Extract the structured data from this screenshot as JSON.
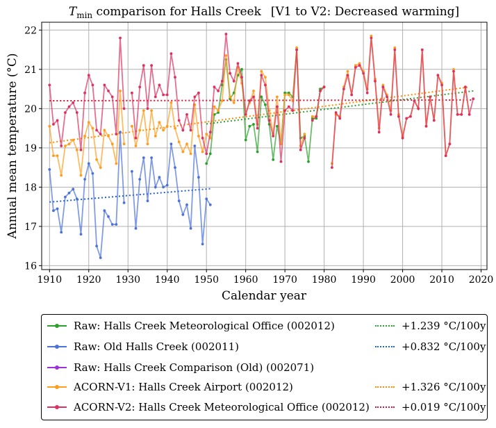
{
  "chart_data": {
    "type": "line",
    "title_main": "T",
    "title_sub": "min",
    "title_rest": " comparison for Halls Creek",
    "title_bracket": "[V1 to V2: Decreased warming]",
    "xlabel": "Calendar year",
    "ylabel": "Annual mean temperature (°C)",
    "xlim": [
      1908,
      2021.5
    ],
    "ylim": [
      15.9,
      22.2
    ],
    "xticks": [
      1910,
      1920,
      1930,
      1940,
      1950,
      1960,
      1970,
      1980,
      1990,
      2000,
      2010,
      2020
    ],
    "yticks": [
      16,
      17,
      18,
      19,
      20,
      21,
      22
    ],
    "grid": true,
    "series": [
      {
        "name": "Raw: Halls Creek Meteorological Office (002012)",
        "color": "#2ca02c",
        "x": [
          1950,
          1951,
          1952,
          1953,
          1954,
          1955,
          1956,
          1957,
          1958,
          1959,
          1960,
          1961,
          1962,
          1963,
          1964,
          1965,
          1966,
          1967,
          1968,
          1969,
          1970,
          1971,
          1972,
          1973,
          1974,
          1975,
          1976,
          1977,
          1978,
          1979,
          1980
        ],
        "y": [
          18.6,
          18.85,
          19.85,
          19.9,
          20.6,
          21.25,
          20.25,
          20.4,
          20.85,
          21.0,
          19.2,
          19.55,
          19.6,
          18.9,
          20.3,
          20.1,
          19.6,
          18.7,
          19.55,
          19.1,
          20.4,
          20.4,
          20.3,
          21.5,
          19.25,
          19.3,
          18.65,
          19.75,
          19.75,
          20.5,
          20.55
        ]
      },
      {
        "name": "Raw: Old Halls Creek (002011)",
        "color": "#4c72d9",
        "x": [
          1910,
          1911,
          1912,
          1913,
          1914,
          1915,
          1916,
          1917,
          1918,
          1919,
          1920,
          1921,
          1922,
          1923,
          1924,
          1925,
          1926,
          1927,
          1928,
          1929,
          1930,
          1931,
          1932,
          1933,
          1934,
          1935,
          1936,
          1937,
          1938,
          1939,
          1940,
          1941,
          1942,
          1943,
          1944,
          1945,
          1946,
          1947,
          1948,
          1949,
          1950,
          1951
        ],
        "y": [
          18.45,
          17.4,
          17.45,
          16.85,
          17.75,
          17.85,
          17.95,
          17.7,
          16.8,
          18.2,
          18.6,
          18.35,
          16.5,
          16.2,
          17.4,
          17.25,
          17.05,
          17.05,
          19.4,
          17.6,
          null,
          18.4,
          16.95,
          18.2,
          18.75,
          17.65,
          18.75,
          18.0,
          18.25,
          18.0,
          18.05,
          19.1,
          18.5,
          17.65,
          17.3,
          17.55,
          16.95,
          19.05,
          18.25,
          16.55,
          17.7,
          17.55
        ]
      },
      {
        "name": "Raw: Halls Creek Comparison (Old) (002071)",
        "color": "#9b30d9",
        "x": [],
        "y": []
      },
      {
        "name": "ACORN-V1: Halls Creek Airport (002012)",
        "color": "#ff9d1f",
        "x": [
          1910,
          1911,
          1912,
          1913,
          1914,
          1915,
          1916,
          1917,
          1918,
          1919,
          1920,
          1921,
          1922,
          1923,
          1924,
          1925,
          1926,
          1927,
          1928,
          1929,
          1930,
          1931,
          1932,
          1933,
          1934,
          1935,
          1936,
          1937,
          1938,
          1939,
          1940,
          1941,
          1942,
          1943,
          1944,
          1945,
          1946,
          1947,
          1948,
          1949,
          1950,
          1951,
          1952,
          1953,
          1954,
          1955,
          1956,
          1957,
          1958,
          1959,
          1960,
          1961,
          1962,
          1963,
          1964,
          1965,
          1966,
          1967,
          1968,
          1969,
          1970,
          1971,
          1972,
          1973,
          1974,
          1975,
          1976,
          1977,
          1978,
          1979,
          1980,
          1981,
          1982,
          1983,
          1984,
          1985,
          1986,
          1987,
          1988,
          1989,
          1990,
          1991,
          1992,
          1993,
          1994,
          1995,
          1996,
          1997,
          1998,
          1999,
          2000,
          2001,
          2002,
          2003,
          2004,
          2005,
          2006,
          2007,
          2008,
          2009,
          2010,
          2011,
          2012,
          2013,
          2014,
          2015,
          2016,
          2017
        ],
        "y": [
          19.55,
          18.8,
          18.8,
          18.3,
          19.05,
          19.1,
          19.2,
          18.95,
          18.3,
          19.3,
          19.65,
          19.5,
          18.7,
          18.5,
          19.45,
          19.3,
          19.1,
          18.6,
          20.45,
          19.1,
          null,
          19.55,
          19.05,
          19.45,
          19.95,
          19.1,
          19.95,
          19.3,
          19.65,
          19.45,
          19.55,
          20.15,
          19.5,
          19.15,
          18.9,
          19.1,
          18.85,
          20.1,
          19.3,
          18.9,
          19.35,
          19.25,
          20.05,
          19.95,
          20.2,
          21.35,
          20.3,
          20.15,
          21.05,
          20.65,
          19.85,
          20.15,
          20.45,
          19.6,
          20.95,
          20.8,
          19.95,
          19.35,
          20.3,
          19.1,
          20.35,
          20.35,
          20.2,
          21.55,
          19.05,
          19.35,
          null,
          19.8,
          19.8,
          20.45,
          20.55,
          null,
          18.6,
          19.85,
          19.8,
          20.55,
          20.95,
          20.35,
          21.1,
          21.15,
          20.95,
          20.5,
          21.85,
          20.75,
          19.5,
          20.6,
          20.35,
          19.95,
          21.55,
          19.85,
          19.3,
          19.75,
          19.8,
          20.2,
          20.0,
          21.5,
          19.55,
          20.3,
          19.7,
          20.85,
          20.65,
          18.8,
          19.1,
          21.0,
          19.85,
          19.85,
          20.55,
          19.85
        ]
      },
      {
        "name": "ACORN-V2: Halls Creek Meteorological Office (002012)",
        "color": "#dc3060",
        "x": [
          1910,
          1911,
          1912,
          1913,
          1914,
          1915,
          1916,
          1917,
          1918,
          1919,
          1920,
          1921,
          1922,
          1923,
          1924,
          1925,
          1926,
          1927,
          1928,
          1929,
          1930,
          1931,
          1932,
          1933,
          1934,
          1935,
          1936,
          1937,
          1938,
          1939,
          1940,
          1941,
          1942,
          1943,
          1944,
          1945,
          1946,
          1947,
          1948,
          1949,
          1950,
          1951,
          1952,
          1953,
          1954,
          1955,
          1956,
          1957,
          1958,
          1959,
          1960,
          1961,
          1962,
          1963,
          1964,
          1965,
          1966,
          1967,
          1968,
          1969,
          1970,
          1971,
          1972,
          1973,
          1974,
          1975,
          1976,
          1977,
          1978,
          1979,
          1980,
          1981,
          1982,
          1983,
          1984,
          1985,
          1986,
          1987,
          1988,
          1989,
          1990,
          1991,
          1992,
          1993,
          1994,
          1995,
          1996,
          1997,
          1998,
          1999,
          2000,
          2001,
          2002,
          2003,
          2004,
          2005,
          2006,
          2007,
          2008,
          2009,
          2010,
          2011,
          2012,
          2013,
          2014,
          2015,
          2016,
          2017,
          2018
        ],
        "y": [
          20.6,
          19.6,
          19.7,
          19.05,
          19.9,
          20.05,
          20.15,
          19.9,
          18.95,
          20.4,
          20.85,
          20.6,
          19.45,
          19.35,
          20.6,
          20.45,
          20.3,
          19.35,
          21.8,
          20.0,
          null,
          20.4,
          19.25,
          20.55,
          21.1,
          20.0,
          21.1,
          20.3,
          20.6,
          20.35,
          20.35,
          21.4,
          20.8,
          19.7,
          19.45,
          19.85,
          19.45,
          20.3,
          20.4,
          19.25,
          18.85,
          19.4,
          20.55,
          20.45,
          20.7,
          21.9,
          20.9,
          20.7,
          21.15,
          20.8,
          19.85,
          20.2,
          20.3,
          19.5,
          20.85,
          20.6,
          19.7,
          19.3,
          20.05,
          18.65,
          19.95,
          20.05,
          19.95,
          21.5,
          18.95,
          19.25,
          null,
          19.7,
          19.8,
          20.45,
          20.55,
          null,
          18.5,
          19.9,
          19.75,
          20.5,
          20.85,
          20.35,
          21.05,
          21.1,
          20.9,
          20.4,
          21.8,
          20.7,
          19.4,
          20.55,
          20.3,
          19.85,
          21.5,
          19.8,
          19.25,
          19.75,
          19.8,
          20.2,
          20.0,
          21.5,
          19.55,
          20.3,
          19.7,
          20.85,
          20.6,
          18.8,
          19.1,
          20.95,
          19.85,
          19.85,
          20.55,
          19.85,
          20.25
        ]
      }
    ],
    "trends": [
      {
        "label": "+1.239 °C/100y",
        "color": "#2ca02c",
        "x": [
          1950,
          2018
        ],
        "y": [
          19.61,
          20.45
        ]
      },
      {
        "label": "+0.832 °C/100y",
        "color": "#1f5fd0",
        "x": [
          1910,
          1951
        ],
        "y": [
          17.62,
          17.96
        ]
      },
      {
        "label": "+1.326 °C/100y",
        "color": "#ff8c00",
        "x": [
          1910,
          2017
        ],
        "y": [
          19.13,
          20.55
        ]
      },
      {
        "label": "+0.019 °C/100y",
        "color": "#d6102f",
        "x": [
          1910,
          2018
        ],
        "y": [
          20.2,
          20.22
        ]
      }
    ]
  }
}
